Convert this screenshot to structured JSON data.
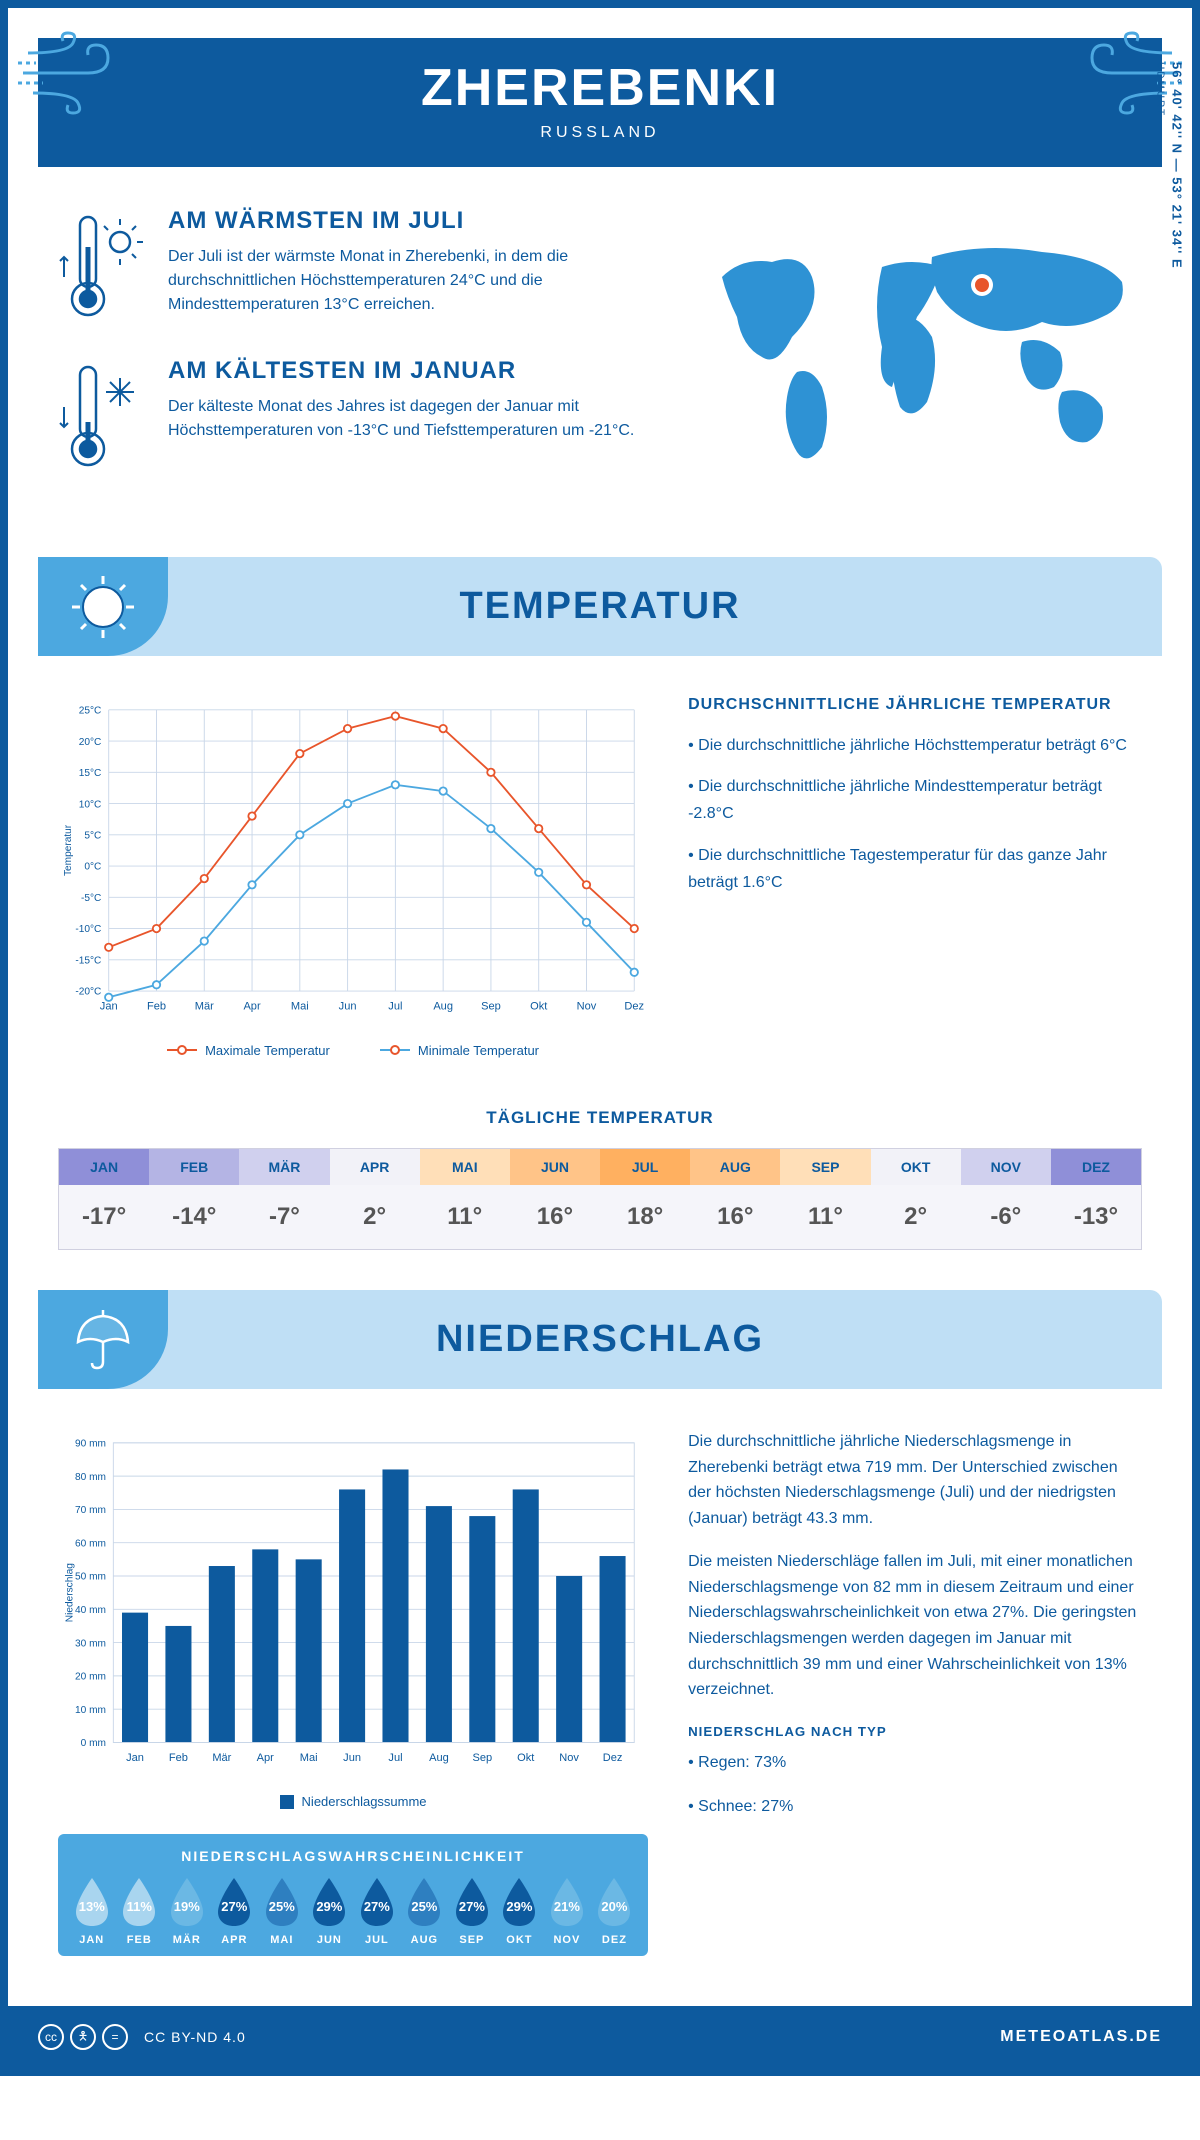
{
  "header": {
    "title": "ZHEREBENKI",
    "country": "RUSSLAND"
  },
  "coords": {
    "main": "56° 40' 42'' N — 53° 21' 34'' E",
    "sub": "UDMURT"
  },
  "warmest": {
    "heading": "AM WÄRMSTEN IM JULI",
    "text": "Der Juli ist der wärmste Monat in Zherebenki, in dem die durchschnittlichen Höchsttemperaturen 24°C und die Mindesttemperaturen 13°C erreichen."
  },
  "coldest": {
    "heading": "AM KÄLTESTEN IM JANUAR",
    "text": "Der kälteste Monat des Jahres ist dagegen der Januar mit Höchsttemperaturen von -13°C und Tiefsttemperaturen um -21°C."
  },
  "temp_section_title": "TEMPERATUR",
  "temp_chart": {
    "type": "line",
    "months": [
      "Jan",
      "Feb",
      "Mär",
      "Apr",
      "Mai",
      "Jun",
      "Jul",
      "Aug",
      "Sep",
      "Okt",
      "Nov",
      "Dez"
    ],
    "max_series": {
      "label": "Maximale Temperatur",
      "color": "#e8552b",
      "values": [
        -13,
        -10,
        -2,
        8,
        18,
        22,
        24,
        22,
        15,
        6,
        -3,
        -10
      ]
    },
    "min_series": {
      "label": "Minimale Temperatur",
      "color": "#4ca8e0",
      "values": [
        -21,
        -19,
        -12,
        -3,
        5,
        10,
        13,
        12,
        6,
        -1,
        -9,
        -17
      ]
    },
    "y_label": "Temperatur",
    "y_ticks": [
      "-20°C",
      "-15°C",
      "-10°C",
      "-5°C",
      "0°C",
      "5°C",
      "10°C",
      "15°C",
      "20°C",
      "25°C"
    ],
    "y_min": -20,
    "y_max": 25,
    "grid_color": "#c8d6e8",
    "axis_color": "#0d5a9e",
    "marker_size": 4,
    "line_width": 2,
    "background": "#ffffff"
  },
  "temp_side": {
    "heading": "DURCHSCHNITTLICHE JÄHRLICHE TEMPERATUR",
    "bullets": [
      "• Die durchschnittliche jährliche Höchsttemperatur beträgt 6°C",
      "• Die durchschnittliche jährliche Mindesttemperatur beträgt -2.8°C",
      "• Die durchschnittliche Tagestemperatur für das ganze Jahr beträgt 1.6°C"
    ]
  },
  "daily_strip": {
    "title": "TÄGLICHE TEMPERATUR",
    "months": [
      "JAN",
      "FEB",
      "MÄR",
      "APR",
      "MAI",
      "JUN",
      "JUL",
      "AUG",
      "SEP",
      "OKT",
      "NOV",
      "DEZ"
    ],
    "values": [
      "-17°",
      "-14°",
      "-7°",
      "2°",
      "11°",
      "16°",
      "18°",
      "16°",
      "11°",
      "2°",
      "-6°",
      "-13°"
    ],
    "header_colors": [
      "#8f8fd8",
      "#b4b4e4",
      "#d0d0ee",
      "#f2f2f8",
      "#ffdfb8",
      "#ffc488",
      "#ffb060",
      "#ffc488",
      "#ffdfb8",
      "#f2f2f8",
      "#d0d0ee",
      "#8f8fd8"
    ],
    "value_bg": "#f5f5fa"
  },
  "precip_section_title": "NIEDERSCHLAG",
  "precip_chart": {
    "type": "bar",
    "months": [
      "Jan",
      "Feb",
      "Mär",
      "Apr",
      "Mai",
      "Jun",
      "Jul",
      "Aug",
      "Sep",
      "Okt",
      "Nov",
      "Dez"
    ],
    "values": [
      39,
      35,
      53,
      58,
      55,
      76,
      82,
      71,
      68,
      76,
      50,
      56
    ],
    "bar_color": "#0d5a9e",
    "legend_label": "Niederschlagssumme",
    "y_label": "Niederschlag",
    "y_ticks": [
      "0 mm",
      "10 mm",
      "20 mm",
      "30 mm",
      "40 mm",
      "50 mm",
      "60 mm",
      "70 mm",
      "80 mm",
      "90 mm"
    ],
    "y_max": 90,
    "grid_color": "#c8d6e8",
    "axis_color": "#0d5a9e",
    "bar_width": 0.6
  },
  "precip_text": {
    "para1": "Die durchschnittliche jährliche Niederschlagsmenge in Zherebenki beträgt etwa 719 mm. Der Unterschied zwischen der höchsten Niederschlagsmenge (Juli) und der niedrigsten (Januar) beträgt 43.3 mm.",
    "para2": "Die meisten Niederschläge fallen im Juli, mit einer monatlichen Niederschlagsmenge von 82 mm in diesem Zeitraum und einer Niederschlagswahrscheinlichkeit von etwa 27%. Die geringsten Niederschlagsmengen werden dagegen im Januar mit durchschnittlich 39 mm und einer Wahrscheinlichkeit von 13% verzeichnet.",
    "type_heading": "NIEDERSCHLAG NACH TYP",
    "type_bullets": [
      "• Regen: 73%",
      "• Schnee: 27%"
    ]
  },
  "prob": {
    "title": "NIEDERSCHLAGSWAHRSCHEINLICHKEIT",
    "months": [
      "JAN",
      "FEB",
      "MÄR",
      "APR",
      "MAI",
      "JUN",
      "JUL",
      "AUG",
      "SEP",
      "OKT",
      "NOV",
      "DEZ"
    ],
    "values": [
      "13%",
      "11%",
      "19%",
      "27%",
      "25%",
      "29%",
      "27%",
      "25%",
      "27%",
      "29%",
      "21%",
      "20%"
    ],
    "drop_colors": [
      "#a9d5ef",
      "#a9d5ef",
      "#6bb8e4",
      "#0d5a9e",
      "#2e7fc0",
      "#0d5a9e",
      "#0d5a9e",
      "#2e7fc0",
      "#0d5a9e",
      "#0d5a9e",
      "#6bb8e4",
      "#6bb8e4"
    ],
    "box_bg": "#4ca8e0"
  },
  "footer": {
    "license": "CC BY-ND 4.0",
    "brand": "METEOATLAS.DE"
  },
  "colors": {
    "primary": "#0d5a9e",
    "light_blue": "#bfdff5",
    "mid_blue": "#4ca8e0",
    "orange": "#e8552b",
    "sky": "#4ca8e0"
  }
}
